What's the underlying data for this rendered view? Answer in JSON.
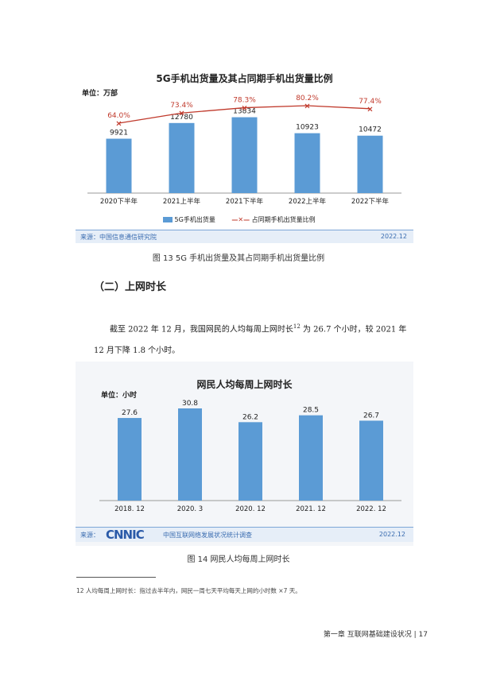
{
  "chart1": {
    "title": "5G手机出货量及其占同期手机出货量比例",
    "unit": "单位：万部",
    "source": "来源：中国信息通信研究院",
    "date": "2022.12",
    "legend_bar": "5G手机出货量",
    "legend_line": "占同期手机出货量比例",
    "caption": "图 13  5G 手机出货量及其占同期手机出货量比例",
    "colors": {
      "bar": "#5b9bd5",
      "line": "#c0392b"
    }
  },
  "section": {
    "title": "（二）上网时长"
  },
  "paragraph": {
    "line1": "截至 2022 年 12 月，我国网民的人均每周上网时长",
    "sup": "12",
    "line1b": " 为 26.7 个小时，较 2021 年",
    "line2": "12 月下降 1.8 个小时。"
  },
  "chart2": {
    "title": "网民人均每周上网时长",
    "unit": "单位：小时",
    "source": "来源：",
    "logo": "CNNIC",
    "org": "中国互联网络发展状况统计调查",
    "date": "2022.12",
    "caption": "图 14  网民人均每周上网时长",
    "colors": {
      "bar": "#5b9bd5"
    }
  },
  "footnote": "12   人均每周上网时长：指过去半年内，网民一周七天平均每天上网的小时数 ×7 天。",
  "footer": "第一章   互联网基础建设状况 | 17",
  "chart_data": [
    {
      "type": "bar",
      "title": "5G手机出货量及其占同期手机出货量比例",
      "categories": [
        "2020下半年",
        "2021上半年",
        "2021下半年",
        "2022上半年",
        "2022下半年"
      ],
      "series": [
        {
          "name": "5G手机出货量",
          "type": "bar",
          "values": [
            9921,
            12780,
            13834,
            10923,
            10472
          ],
          "labels": [
            "9921",
            "12780",
            "13834",
            "10923",
            "10472"
          ]
        },
        {
          "name": "占同期手机出货量比例",
          "type": "line",
          "values": [
            64.0,
            73.4,
            78.3,
            80.2,
            77.4
          ],
          "labels": [
            "64.0%",
            "73.4%",
            "78.3%",
            "80.2%",
            "77.4%"
          ]
        }
      ],
      "ylabel": "单位：万部",
      "legend": "bottom"
    },
    {
      "type": "bar",
      "title": "网民人均每周上网时长",
      "categories": [
        "2018. 12",
        "2020. 3",
        "2020. 12",
        "2021. 12",
        "2022. 12"
      ],
      "series": [
        {
          "name": "",
          "values": [
            27.6,
            30.8,
            26.2,
            28.5,
            26.7
          ],
          "labels": [
            "27.6",
            "30.8",
            "26.2",
            "28.5",
            "26.7"
          ]
        }
      ],
      "ylabel": "单位：小时"
    }
  ]
}
